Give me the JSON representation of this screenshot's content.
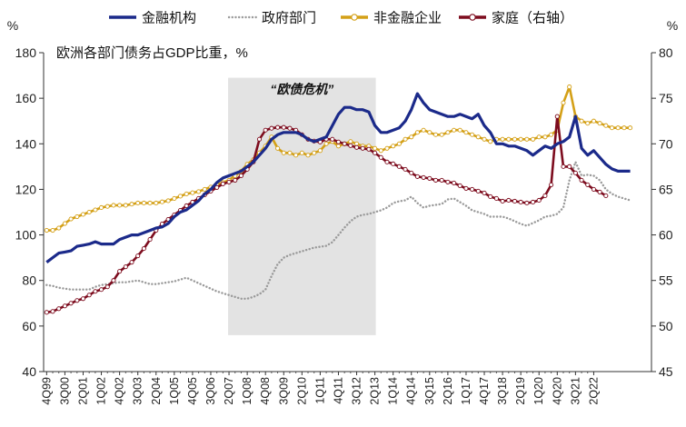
{
  "chart_data": {
    "type": "line",
    "subtitle": "欧洲各部门债务占GDP比重，%",
    "y_unit_left": "%",
    "y_unit_right": "%",
    "ylim_left": [
      40,
      180
    ],
    "ylim_right": [
      45,
      80
    ],
    "yticks_left": [
      "40",
      "60",
      "80",
      "100",
      "120",
      "140",
      "160",
      "180"
    ],
    "yticks_right": [
      "45",
      "50",
      "55",
      "60",
      "65",
      "70",
      "75",
      "80"
    ],
    "x_tick_labels": [
      "4Q99",
      "3Q00",
      "2Q01",
      "1Q02",
      "4Q02",
      "3Q03",
      "2Q04",
      "1Q05",
      "4Q05",
      "3Q06",
      "2Q07",
      "1Q08",
      "4Q08",
      "3Q09",
      "2Q10",
      "1Q11",
      "4Q11",
      "3Q12",
      "2Q13",
      "1Q14",
      "4Q14",
      "3Q15",
      "2Q16",
      "1Q17",
      "4Q17",
      "3Q18",
      "2Q19",
      "1Q20",
      "4Q20",
      "3Q21",
      "2Q22"
    ],
    "shaded_region": {
      "label": "“欧债危机”",
      "x_start": "2Q07",
      "x_end": "2Q13"
    },
    "legend_position": "top",
    "series": [
      {
        "name": "金融机构",
        "axis": "left",
        "color": "#1b2a8a",
        "style": "solid",
        "values": [
          88,
          90,
          92,
          92.5,
          93,
          95,
          95.5,
          96,
          97,
          96,
          96,
          96,
          98,
          99,
          100,
          100,
          101,
          102,
          103,
          103.5,
          105,
          108,
          110,
          111,
          113,
          115,
          118,
          120,
          123,
          125,
          126,
          127,
          128,
          130,
          132,
          135,
          138,
          142,
          144,
          145,
          145,
          145,
          144,
          142,
          141,
          142,
          143,
          148,
          153,
          156,
          156,
          155,
          155,
          154,
          148,
          145,
          145,
          146,
          147,
          150,
          155,
          162,
          158,
          155,
          154,
          153,
          152,
          152,
          153,
          152,
          151,
          153,
          148,
          145,
          140,
          140,
          139,
          139,
          138,
          137,
          135,
          137,
          139,
          138,
          140,
          141,
          143,
          152,
          138,
          135,
          137,
          134,
          131,
          129,
          128,
          128,
          128
        ]
      },
      {
        "name": "政府部门",
        "axis": "right",
        "color": "#9a9a9a",
        "style": "dotted",
        "values": [
          54.5,
          54.4,
          54.2,
          54.1,
          54,
          54,
          54,
          54,
          54.3,
          54.5,
          54.6,
          54.7,
          54.8,
          54.8,
          54.9,
          55,
          54.8,
          54.6,
          54.6,
          54.7,
          54.8,
          54.9,
          55.1,
          55.3,
          55,
          54.7,
          54.4,
          54.1,
          53.8,
          53.6,
          53.4,
          53.2,
          53,
          53,
          53.2,
          53.5,
          54,
          55.5,
          56.8,
          57.5,
          57.8,
          58,
          58.2,
          58.4,
          58.6,
          58.7,
          58.8,
          59.2,
          60,
          60.8,
          61.5,
          62,
          62.2,
          62.3,
          62.5,
          62.7,
          63,
          63.5,
          63.7,
          63.8,
          64.2,
          63.5,
          63,
          63.2,
          63.3,
          63.4,
          63.9,
          64,
          63.6,
          63.2,
          62.7,
          62.5,
          62.3,
          62,
          62,
          62,
          61.8,
          61.5,
          61.2,
          61,
          61.3,
          61.6,
          62,
          62.1,
          62.3,
          63,
          66,
          68,
          66.5,
          66.6,
          66.5,
          66,
          65,
          64.5,
          64.2,
          64,
          63.8
        ]
      },
      {
        "name": "非金融企业",
        "axis": "left",
        "color": "#d4a017",
        "style": "solid",
        "values": [
          102,
          102,
          103,
          105,
          107,
          108,
          109,
          110,
          111,
          112,
          112.5,
          113,
          113,
          113,
          113.5,
          114,
          114,
          114,
          114,
          114.5,
          115,
          116,
          117,
          118,
          118.5,
          119,
          120,
          121,
          122,
          123,
          124,
          126,
          128,
          131,
          133,
          136,
          139,
          143,
          138,
          136,
          136,
          135,
          136,
          135,
          136,
          137,
          140,
          141,
          139,
          140,
          141,
          140,
          139,
          139,
          138,
          137,
          138,
          139,
          140,
          142,
          143,
          145,
          146,
          145,
          144,
          144,
          145,
          146,
          146,
          145,
          144,
          143,
          142,
          141,
          142,
          142,
          142,
          142,
          142,
          142,
          142,
          143,
          143,
          144,
          146,
          158,
          165,
          152,
          150,
          149,
          150,
          149,
          148,
          147,
          147,
          147,
          147
        ]
      },
      {
        "name": "家庭（右轴）",
        "axis": "right",
        "color": "#7d0c1e",
        "style": "solid",
        "values": [
          51.5,
          51.6,
          51.9,
          52.2,
          52.5,
          52.8,
          53,
          53.4,
          53.8,
          54,
          54.3,
          55,
          56,
          56.5,
          57,
          57.7,
          58.5,
          59.5,
          60.5,
          61.2,
          61.7,
          62.2,
          62.7,
          63.2,
          63.6,
          64,
          64.4,
          64.8,
          65.2,
          65.6,
          65.8,
          66,
          66.5,
          67.2,
          68,
          70.5,
          71.5,
          71.7,
          71.8,
          71.8,
          71.7,
          71.5,
          71,
          70.5,
          70.3,
          70.2,
          70.5,
          70.5,
          70.2,
          70,
          69.8,
          69.6,
          69.5,
          69.4,
          69,
          68.5,
          68,
          67.8,
          67.5,
          67.2,
          66.8,
          66.4,
          66.3,
          66.2,
          66,
          66,
          65.8,
          65.7,
          65.4,
          65.1,
          65,
          64.8,
          64.6,
          64.2,
          64,
          63.7,
          63.8,
          63.7,
          63.6,
          63.5,
          63.6,
          63.8,
          64.3,
          65.5,
          73,
          67.5,
          67.5,
          66.8,
          66,
          65.5,
          65,
          64.7,
          64.3
        ]
      }
    ]
  }
}
